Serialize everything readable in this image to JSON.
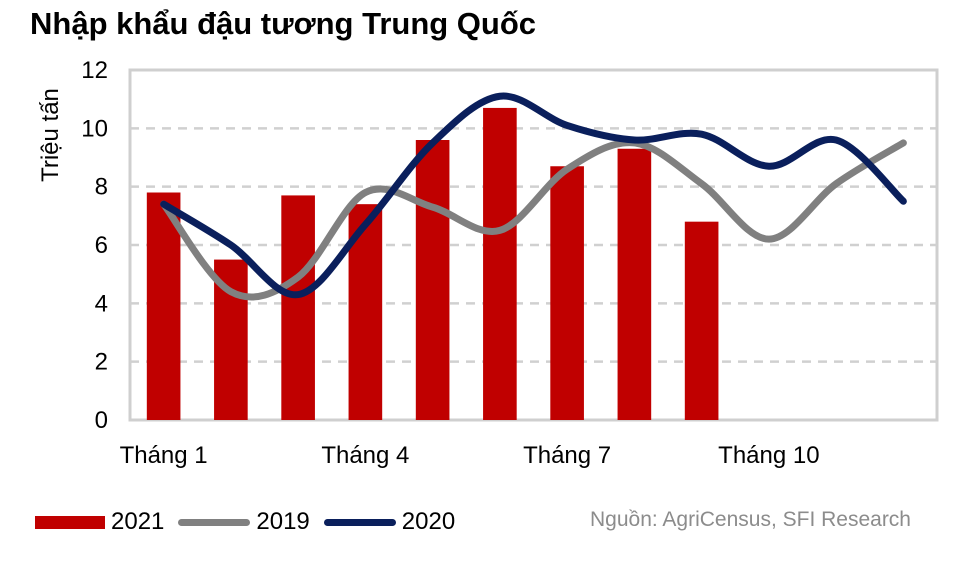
{
  "title": "Nhập khẩu đậu tương Trung Quốc",
  "source": "Nguồn: AgriCensus, SFI Research",
  "colors": {
    "s2021": "#c00000",
    "s2019": "#808080",
    "s2020": "#0a1f5c",
    "grid": "#d0d0d0",
    "frame": "#cfcfcf"
  },
  "chart_data": {
    "type": "bar",
    "ylabel": "Triệu tấn",
    "xlabel": "",
    "ylim": [
      0,
      12
    ],
    "yticks": [
      0,
      2,
      4,
      6,
      8,
      10,
      12
    ],
    "months": [
      1,
      2,
      3,
      4,
      5,
      6,
      7,
      8,
      9,
      10,
      11,
      12
    ],
    "xtick_labels": [
      {
        "month": 1,
        "label": "Tháng 1"
      },
      {
        "month": 4,
        "label": "Tháng 4"
      },
      {
        "month": 7,
        "label": "Tháng 7"
      },
      {
        "month": 10,
        "label": "Tháng 10"
      }
    ],
    "grid": true,
    "legend_position": "bottom-left",
    "series": [
      {
        "name": "2021",
        "type": "bar",
        "values": [
          7.8,
          5.5,
          7.7,
          7.4,
          9.6,
          10.7,
          8.7,
          9.3,
          6.8
        ]
      },
      {
        "name": "2019",
        "type": "line",
        "values": [
          7.4,
          4.4,
          4.9,
          7.8,
          7.3,
          6.5,
          8.6,
          9.5,
          8.1,
          6.2,
          8.1,
          9.5
        ]
      },
      {
        "name": "2020",
        "type": "line",
        "values": [
          7.4,
          6.0,
          4.3,
          6.7,
          9.5,
          11.1,
          10.1,
          9.6,
          9.8,
          8.7,
          9.6,
          7.5
        ]
      }
    ]
  }
}
